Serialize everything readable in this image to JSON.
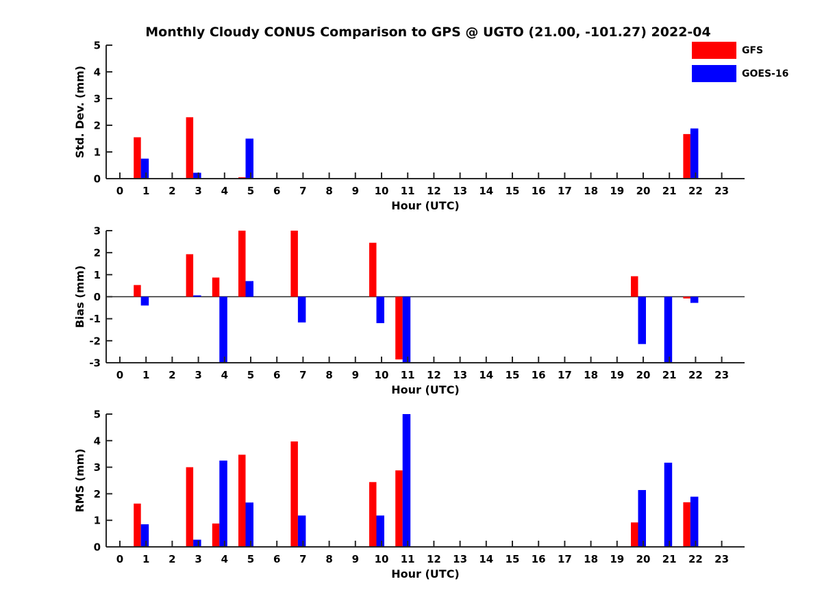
{
  "title": "Monthly Cloudy CONUS Comparison to GPS @ UGTO (21.00, -101.27) 2022-04",
  "legend": {
    "items": [
      {
        "label": "GFS",
        "color": "#ff0000"
      },
      {
        "label": "GOES-16",
        "color": "#0000ff"
      }
    ]
  },
  "colors": {
    "gfs": "#ff0000",
    "goes16": "#0000ff",
    "axis": "#262626",
    "background": "#ffffff"
  },
  "chart_data": [
    {
      "type": "bar",
      "name": "std-dev",
      "ylabel": "Std. Dev. (mm)",
      "xlabel": "Hour (UTC)",
      "ylim": [
        0,
        5
      ],
      "yticks": [
        0,
        1,
        2,
        3,
        4,
        5
      ],
      "grid": false,
      "legend_position": "top-right-outside",
      "categories": [
        0,
        1,
        2,
        3,
        4,
        5,
        6,
        7,
        8,
        9,
        10,
        11,
        12,
        13,
        14,
        15,
        16,
        17,
        18,
        19,
        20,
        21,
        22,
        23
      ],
      "series": [
        {
          "name": "GFS",
          "values": [
            null,
            1.55,
            null,
            2.3,
            null,
            0.05,
            null,
            null,
            null,
            null,
            null,
            null,
            null,
            null,
            null,
            null,
            null,
            null,
            null,
            null,
            null,
            null,
            1.67,
            null
          ]
        },
        {
          "name": "GOES-16",
          "values": [
            null,
            0.75,
            null,
            0.22,
            null,
            1.5,
            null,
            null,
            null,
            null,
            null,
            null,
            null,
            null,
            null,
            null,
            null,
            null,
            null,
            null,
            null,
            null,
            1.88,
            null
          ]
        }
      ]
    },
    {
      "type": "bar",
      "name": "bias",
      "ylabel": "Bias (mm)",
      "xlabel": "Hour (UTC)",
      "ylim": [
        -3,
        3
      ],
      "yticks": [
        -3,
        -2,
        -1,
        0,
        1,
        2,
        3
      ],
      "grid": false,
      "zero_line": true,
      "categories": [
        0,
        1,
        2,
        3,
        4,
        5,
        6,
        7,
        8,
        9,
        10,
        11,
        12,
        13,
        14,
        15,
        16,
        17,
        18,
        19,
        20,
        21,
        22,
        23
      ],
      "series": [
        {
          "name": "GFS",
          "values": [
            null,
            0.53,
            null,
            1.93,
            0.87,
            3.0,
            null,
            3.0,
            null,
            null,
            2.45,
            -2.85,
            null,
            null,
            null,
            null,
            null,
            null,
            null,
            null,
            0.93,
            null,
            -0.08,
            null
          ]
        },
        {
          "name": "GOES-16",
          "values": [
            null,
            -0.4,
            null,
            0.06,
            -3.0,
            0.71,
            null,
            -1.17,
            null,
            null,
            -1.2,
            -3.0,
            null,
            null,
            null,
            null,
            null,
            null,
            null,
            null,
            -2.15,
            -3.0,
            -0.28,
            null
          ]
        }
      ]
    },
    {
      "type": "bar",
      "name": "rms",
      "ylabel": "RMS (mm)",
      "xlabel": "Hour (UTC)",
      "ylim": [
        0,
        5
      ],
      "yticks": [
        0,
        1,
        2,
        3,
        4,
        5
      ],
      "grid": false,
      "categories": [
        0,
        1,
        2,
        3,
        4,
        5,
        6,
        7,
        8,
        9,
        10,
        11,
        12,
        13,
        14,
        15,
        16,
        17,
        18,
        19,
        20,
        21,
        22,
        23
      ],
      "series": [
        {
          "name": "GFS",
          "values": [
            null,
            1.63,
            null,
            3.0,
            0.88,
            3.47,
            null,
            3.97,
            null,
            null,
            2.44,
            2.88,
            null,
            null,
            null,
            null,
            null,
            null,
            null,
            null,
            0.92,
            null,
            1.68,
            null
          ]
        },
        {
          "name": "GOES-16",
          "values": [
            null,
            0.85,
            null,
            0.27,
            3.25,
            1.67,
            null,
            1.18,
            null,
            null,
            1.18,
            5.0,
            null,
            null,
            null,
            null,
            null,
            null,
            null,
            null,
            2.14,
            3.17,
            1.89,
            null
          ]
        }
      ]
    }
  ]
}
